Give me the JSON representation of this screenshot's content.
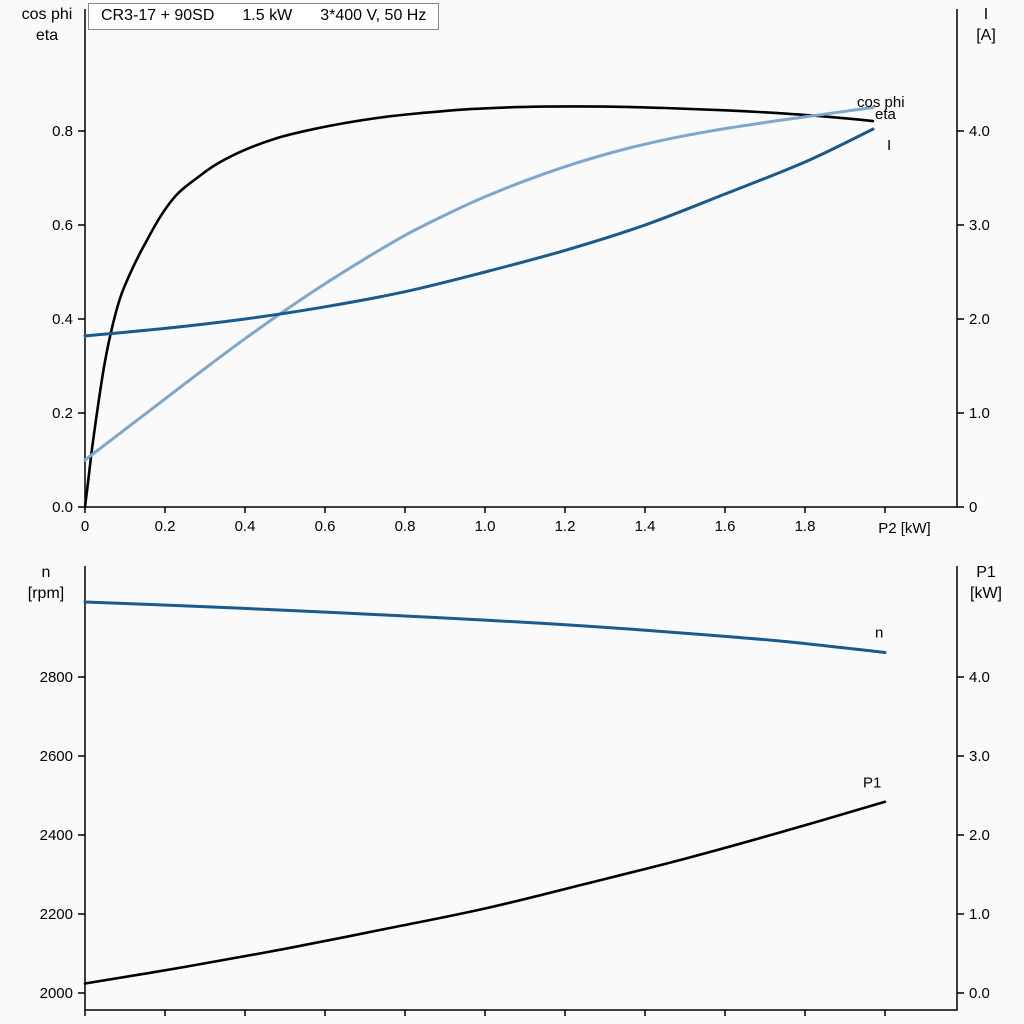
{
  "title_box": {
    "parts": [
      "CR3-17 + 90SD",
      "1.5 kW",
      "3*400 V, 50 Hz"
    ]
  },
  "axis_headers": {
    "top_left": [
      "cos phi",
      "eta"
    ],
    "top_right": [
      "I",
      "[A]"
    ],
    "bottom_left": [
      "n",
      "[rpm]"
    ],
    "bottom_right": [
      "P1",
      "[kW]"
    ]
  },
  "colors": {
    "black_curve": "#000000",
    "light_blue_curve": "#7fa7cc",
    "dark_blue_curve": "#1c5a8c",
    "axis": "#000000",
    "background": "#fafafa",
    "title_border": "#888888"
  },
  "chart_data": [
    {
      "type": "line",
      "title": "CR3-17 + 90SD 1.5 kW 3*400 V, 50 Hz",
      "x_axis": {
        "label": "P2 [kW]",
        "range": [
          0,
          2.18
        ],
        "tick_values": [
          0,
          0.2,
          0.4,
          0.6,
          0.8,
          1.0,
          1.2,
          1.4,
          1.6,
          1.8,
          2.0
        ],
        "tick_labels": [
          "0",
          "0.2",
          "0.4",
          "0.6",
          "0.8",
          "1.0",
          "1.2",
          "1.4",
          "1.6",
          "1.8",
          ""
        ]
      },
      "left_axis": {
        "label": "cos phi / eta",
        "range": [
          0,
          1.06
        ],
        "tick_values": [
          0,
          0.2,
          0.4,
          0.6,
          0.8
        ],
        "tick_labels": [
          "0.0",
          "0.2",
          "0.4",
          "0.6",
          "0.8"
        ]
      },
      "right_axis": {
        "label": "I [A]",
        "range": [
          0,
          5.3
        ],
        "tick_values": [
          0,
          1,
          2,
          3,
          4
        ],
        "tick_labels": [
          "0",
          "1.0",
          "2.0",
          "3.0",
          "4.0"
        ]
      },
      "series": [
        {
          "name": "eta",
          "axis": "left",
          "color": "#000000",
          "x": [
            0,
            0.01,
            0.02,
            0.035,
            0.05,
            0.07,
            0.09,
            0.12,
            0.15,
            0.19,
            0.23,
            0.28,
            0.33,
            0.4,
            0.48,
            0.56,
            0.65,
            0.75,
            0.85,
            0.95,
            1.05,
            1.15,
            1.3,
            1.45,
            1.6,
            1.75,
            1.9,
            1.97
          ],
          "y": [
            0,
            0.07,
            0.14,
            0.23,
            0.31,
            0.39,
            0.45,
            0.51,
            0.56,
            0.62,
            0.665,
            0.7,
            0.73,
            0.76,
            0.785,
            0.802,
            0.817,
            0.83,
            0.839,
            0.846,
            0.85,
            0.852,
            0.852,
            0.849,
            0.844,
            0.837,
            0.827,
            0.821
          ]
        },
        {
          "name": "cos phi",
          "axis": "left",
          "color": "#7fa7cc",
          "x": [
            0,
            0.1,
            0.2,
            0.3,
            0.4,
            0.5,
            0.6,
            0.7,
            0.8,
            0.9,
            1.0,
            1.1,
            1.2,
            1.3,
            1.4,
            1.5,
            1.6,
            1.7,
            1.8,
            1.9,
            1.97
          ],
          "y": [
            0.1,
            0.165,
            0.23,
            0.295,
            0.358,
            0.418,
            0.475,
            0.528,
            0.578,
            0.621,
            0.66,
            0.694,
            0.724,
            0.75,
            0.772,
            0.79,
            0.805,
            0.818,
            0.83,
            0.842,
            0.85
          ]
        },
        {
          "name": "I",
          "axis": "right",
          "color": "#1c5a8c",
          "x": [
            0,
            0.2,
            0.4,
            0.6,
            0.8,
            1.0,
            1.2,
            1.4,
            1.6,
            1.8,
            1.97
          ],
          "y": [
            1.82,
            1.9,
            2.0,
            2.13,
            2.29,
            2.5,
            2.73,
            3.0,
            3.33,
            3.67,
            4.02
          ]
        }
      ],
      "curve_labels": [
        {
          "text": "cos phi",
          "x": 1.93,
          "y": 0.851,
          "axis": "left",
          "color": "#7fa7cc"
        },
        {
          "text": "eta",
          "x": 1.975,
          "y": 0.826,
          "axis": "left",
          "color": "#000000"
        },
        {
          "text": "I",
          "x": 2.005,
          "y": 3.8,
          "axis": "right",
          "color": "#1c5a8c"
        }
      ]
    },
    {
      "type": "line",
      "title": "",
      "x_axis": {
        "label": "",
        "range": [
          0,
          2.18
        ],
        "tick_values": [
          0,
          0.2,
          0.4,
          0.6,
          0.8,
          1.0,
          1.2,
          1.4,
          1.6,
          1.8,
          2.0
        ],
        "tick_labels": [
          "",
          "",
          "",
          "",
          "",
          "",
          "",
          "",
          "",
          "",
          ""
        ]
      },
      "left_axis": {
        "label": "n [rpm]",
        "range": [
          1957,
          3081
        ],
        "tick_values": [
          2000,
          2200,
          2400,
          2600,
          2800
        ],
        "tick_labels": [
          "2000",
          "2200",
          "2400",
          "2600",
          "2800"
        ]
      },
      "right_axis": {
        "label": "P1 [kW]",
        "range": [
          -0.2,
          5.4
        ],
        "tick_values": [
          0,
          1,
          2,
          3,
          4
        ],
        "tick_labels": [
          "0.0",
          "1.0",
          "2.0",
          "3.0",
          "4.0"
        ]
      },
      "series": [
        {
          "name": "n",
          "axis": "left",
          "color": "#1c5a8c",
          "x": [
            0,
            0.25,
            0.5,
            0.75,
            1.0,
            1.25,
            1.5,
            1.75,
            2.0
          ],
          "y": [
            2990,
            2980,
            2969,
            2957,
            2944,
            2929,
            2911,
            2890,
            2862
          ]
        },
        {
          "name": "P1",
          "axis": "right",
          "color": "#000000",
          "x": [
            0,
            0.25,
            0.5,
            0.75,
            1.0,
            1.25,
            1.5,
            1.75,
            2.0
          ],
          "y": [
            0.12,
            0.33,
            0.56,
            0.81,
            1.07,
            1.38,
            1.7,
            2.05,
            2.42
          ]
        }
      ],
      "curve_labels": [
        {
          "text": "n",
          "x": 1.975,
          "y": 2900,
          "axis": "left",
          "color": "#1c5a8c"
        },
        {
          "text": "P1",
          "x": 1.945,
          "y": 2.6,
          "axis": "right",
          "color": "#000000"
        }
      ]
    }
  ]
}
